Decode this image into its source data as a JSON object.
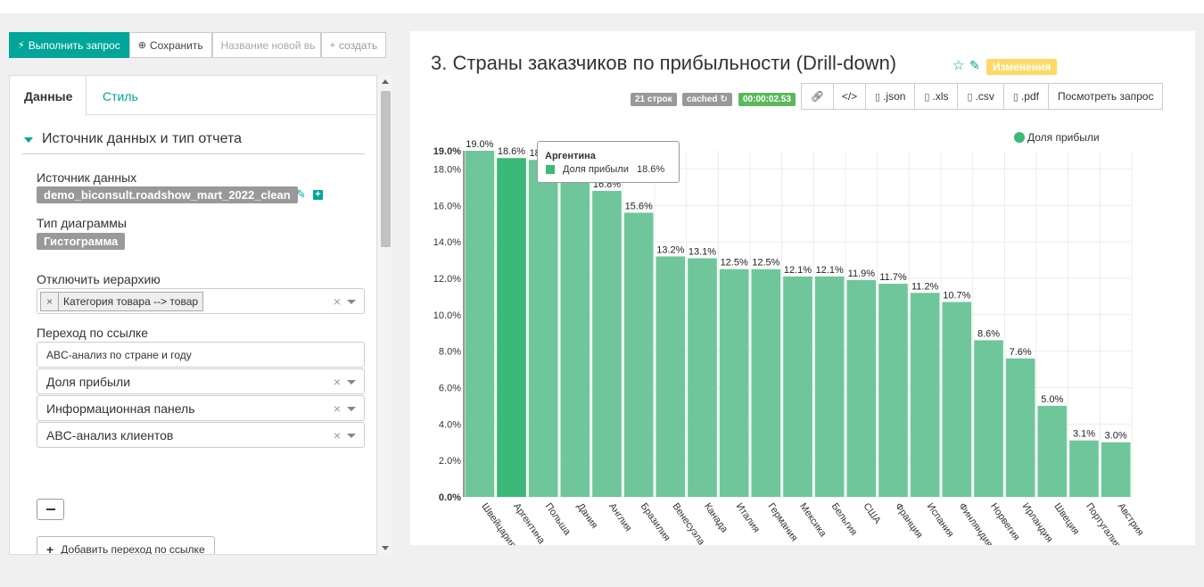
{
  "toolbar": {
    "run_label": "Выполнить запрос",
    "save_label": "Сохранить",
    "new_name_placeholder": "Название новой вь",
    "create_label": "создать"
  },
  "tabs": {
    "data": "Данные",
    "style": "Стиль"
  },
  "section": {
    "title": "Источник данных и тип отчета"
  },
  "form": {
    "datasource_label": "Источник данных",
    "datasource_value": "demo_biconsult.roadshow_mart_2022_clean",
    "chart_type_label": "Тип диаграммы",
    "chart_type_value": "Гистограмма",
    "disable_hierarchy_label": "Отключить иерархию",
    "hierarchy_tag": "Категория товара --> товар",
    "link_label": "Переход по ссылке",
    "link_value": "ABC-анализ по стране и году",
    "select1": "Доля прибыли",
    "select2": "Информационная панель",
    "select3": "ABC-анализ клиентов",
    "add_link_label": "Добавить переход по ссылке"
  },
  "header": {
    "title": "3. Страны заказчиков по прибыльности (Drill-down)",
    "changes_badge": "Изменения",
    "rows_badge": "21 строк",
    "cached_badge": "cached",
    "time_badge": "00:00:02.53"
  },
  "actions": {
    "json": ".json",
    "xls": ".xls",
    "csv": ".csv",
    "pdf": ".pdf",
    "view_query": "Посмотреть запрос"
  },
  "colors": {
    "accent": "#00a699",
    "bar": "#6fc69b",
    "bar_highlight": "#3cb878"
  },
  "tooltip": {
    "title": "Аргентина",
    "series": "Доля прибыли",
    "value": "18.6%"
  },
  "chart_data": {
    "type": "bar",
    "categories": [
      "Швейцария",
      "Аргентина",
      "Польша",
      "Дания",
      "Англия",
      "Бразилия",
      "Венесуэла",
      "Канада",
      "Италия",
      "Германия",
      "Мексика",
      "Бельгия",
      "США",
      "Франция",
      "Испания",
      "Финляндия",
      "Норвегия",
      "Ирландия",
      "Швеция",
      "Португалия",
      "Австрия"
    ],
    "series": [
      {
        "name": "Доля прибыли",
        "values": [
          19.0,
          18.6,
          18.5,
          18.0,
          16.8,
          15.6,
          13.2,
          13.1,
          12.5,
          12.5,
          12.1,
          12.1,
          11.9,
          11.7,
          11.2,
          10.7,
          8.6,
          7.6,
          5.0,
          3.1,
          3.0
        ],
        "labels": [
          "19.0%",
          "18.6%",
          "18.5%",
          "18.0%",
          "16.8%",
          "15.6%",
          "13.2%",
          "13.1%",
          "12.5%",
          "12.5%",
          "12.1%",
          "12.1%",
          "11.9%",
          "11.7%",
          "11.2%",
          "10.7%",
          "8.6%",
          "7.6%",
          "5.0%",
          "3.1%",
          "3.0%"
        ]
      }
    ],
    "yticks": [
      "0.0%",
      "2.0%",
      "4.0%",
      "6.0%",
      "8.0%",
      "10.0%",
      "12.0%",
      "14.0%",
      "16.0%",
      "18.0%"
    ],
    "ymax_label": "19.0%",
    "ylim": [
      0,
      19.0
    ],
    "highlighted_index": 1,
    "legend_position": "top-right",
    "grid": true
  }
}
